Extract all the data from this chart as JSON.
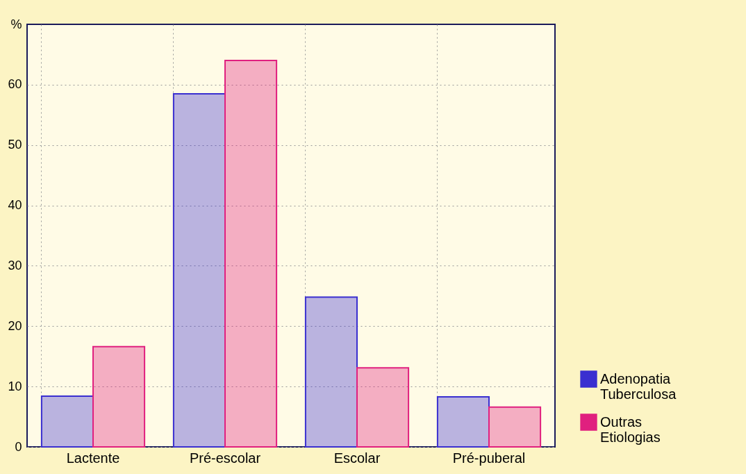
{
  "chart_data": {
    "type": "bar",
    "ylabel": "%",
    "categories": [
      "Lactente",
      "Pré-escolar",
      "Escolar",
      "Pré-puberal"
    ],
    "series": [
      {
        "name": "Adenopatia Tuberculosa",
        "color": "#3a2fd0",
        "values": [
          8.4,
          58.5,
          24.8,
          8.3
        ]
      },
      {
        "name": "Outras Etiologias",
        "color": "#e0207f",
        "values": [
          16.6,
          64.0,
          13.1,
          6.6
        ]
      }
    ],
    "ylim": [
      0,
      70
    ],
    "yticks": [
      0,
      10,
      20,
      30,
      40,
      50,
      60
    ],
    "grid": true,
    "legend": "right"
  }
}
